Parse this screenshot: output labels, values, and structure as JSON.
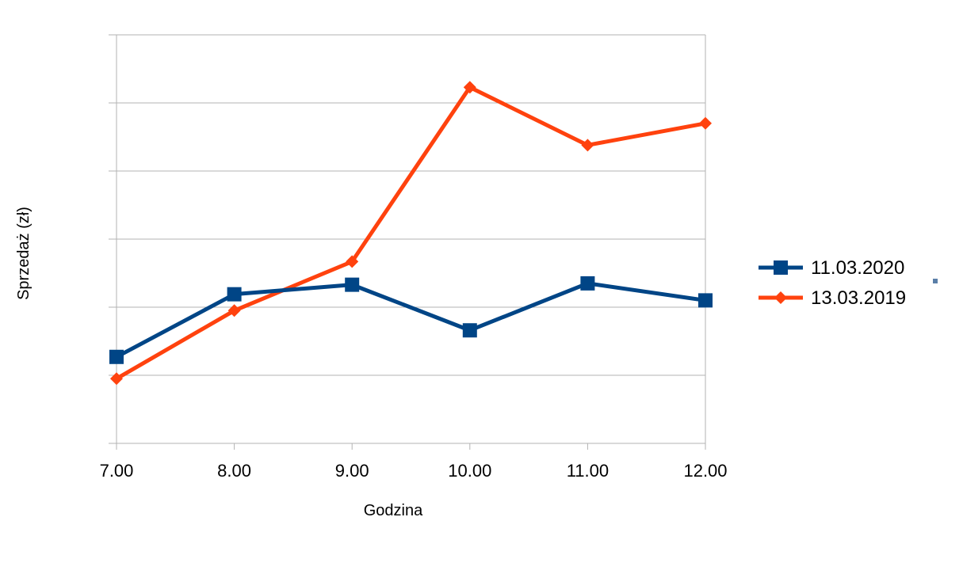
{
  "chart_data": {
    "type": "line",
    "title": "",
    "xlabel": "Godzina",
    "ylabel": "Sprzedaż (zł)",
    "categories": [
      "7.00",
      "8.00",
      "9.00",
      "10.00",
      "11.00",
      "12.00"
    ],
    "ylim": [
      0,
      6
    ],
    "y_ticks_labeled": false,
    "grid": true,
    "legend_position": "right",
    "series": [
      {
        "name": "11.03.2020",
        "color": "#004586",
        "marker": "square",
        "values": [
          1.27,
          2.19,
          2.33,
          1.66,
          2.35,
          2.1
        ]
      },
      {
        "name": "13.03.2019",
        "color": "#ff420e",
        "marker": "diamond",
        "values": [
          0.95,
          1.95,
          2.67,
          5.23,
          4.38,
          4.7
        ]
      }
    ]
  }
}
